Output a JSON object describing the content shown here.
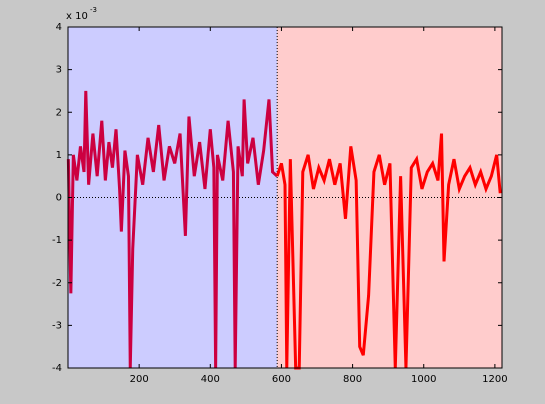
{
  "chart_data": {
    "type": "line",
    "y_multiplier": "x 10",
    "y_multiplier_exp": "-3",
    "xlim": [
      0,
      1220
    ],
    "ylim": [
      -4,
      4
    ],
    "xticks": [
      200,
      400,
      600,
      800,
      1000,
      1200
    ],
    "yticks": [
      -4,
      -3,
      -2,
      -1,
      0,
      1,
      2,
      3,
      4
    ],
    "regions": [
      {
        "start": 0,
        "end": 588,
        "color": "#ccccff"
      },
      {
        "start": 588,
        "end": 1220,
        "color": "#ffcccc"
      }
    ],
    "vline": 588,
    "hline": 0,
    "series": [
      {
        "color": "#cc0040",
        "x": [
          1,
          8,
          15,
          25,
          35,
          45,
          50,
          58,
          70,
          82,
          95,
          105,
          115,
          125,
          135,
          145,
          150,
          160,
          170,
          175,
          182,
          195,
          210,
          225,
          240,
          255,
          270,
          285,
          300,
          315,
          330,
          340,
          355,
          370,
          385,
          400,
          410,
          415,
          420,
          435,
          450,
          465,
          470,
          478,
          490,
          495,
          505,
          520,
          535,
          550,
          565,
          575,
          588
        ],
        "values": [
          0.9,
          -2.25,
          1.0,
          0.4,
          1.2,
          0.6,
          2.5,
          0.3,
          1.5,
          0.5,
          1.8,
          0.4,
          1.3,
          0.7,
          1.6,
          0.2,
          -0.8,
          1.1,
          0.5,
          -4,
          -1.2,
          1.0,
          0.3,
          1.4,
          0.6,
          1.7,
          0.4,
          1.2,
          0.8,
          1.5,
          -0.9,
          1.9,
          0.5,
          1.3,
          0.2,
          1.6,
          0.7,
          -4,
          1.0,
          0.4,
          1.8,
          0.6,
          -4,
          1.2,
          0.5,
          2.3,
          0.8,
          1.4,
          0.3,
          1.1,
          2.3,
          0.6,
          0.5
        ]
      },
      {
        "color": "#ff0000",
        "x": [
          588,
          600,
          610,
          615,
          625,
          640,
          650,
          660,
          675,
          690,
          705,
          720,
          735,
          750,
          765,
          780,
          795,
          810,
          820,
          830,
          845,
          860,
          875,
          890,
          905,
          920,
          935,
          950,
          965,
          980,
          995,
          1010,
          1025,
          1040,
          1050,
          1057,
          1070,
          1085,
          1100,
          1115,
          1130,
          1145,
          1160,
          1175,
          1190,
          1205,
          1215
        ],
        "values": [
          0.5,
          0.8,
          0.3,
          -4,
          0.9,
          -4,
          -4,
          0.6,
          1.0,
          0.2,
          0.7,
          0.4,
          0.9,
          0.3,
          0.8,
          -0.5,
          1.2,
          0.4,
          -3.5,
          -3.7,
          -2.3,
          0.6,
          1.0,
          0.3,
          0.8,
          -4,
          0.5,
          -4,
          0.7,
          0.9,
          0.2,
          0.6,
          0.8,
          0.4,
          1.5,
          -1.5,
          0.3,
          0.9,
          0.2,
          0.5,
          0.7,
          0.3,
          0.6,
          0.2,
          0.5,
          1.0,
          0.1
        ]
      }
    ]
  }
}
